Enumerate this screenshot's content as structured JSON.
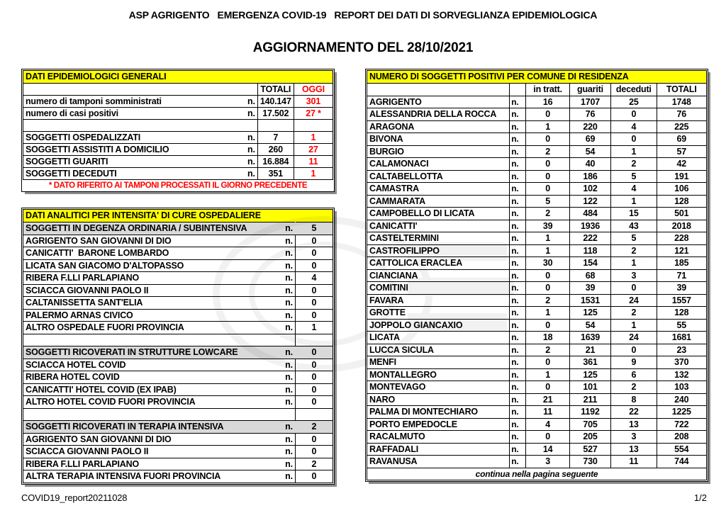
{
  "header": {
    "title": "ASP AGRIGENTO   EMERGENZA COVID-19   REPORT DEI DATI DI SORVEGLIANZA EPIDEMIOLOGICA",
    "subtitle": "AGGIORNAMENTO DEL 28/10/2021"
  },
  "colors": {
    "highlight_yellow": "#ffff00",
    "alert_red": "#ff0000",
    "section_gray": "#d9d9d9"
  },
  "general_table": {
    "title": "DATI EPIDEMIOLOGICI GENERALI",
    "columns": {
      "totali": "TOTALI",
      "oggi": "OGGI"
    },
    "rows": [
      {
        "label": "numero di tamponi somministrati",
        "unit": "n.",
        "totali": "140.147",
        "oggi": "301",
        "empty": false
      },
      {
        "label": "numero di casi positivi",
        "unit": "n.",
        "totali": "17.502",
        "oggi": "27 *",
        "empty": false
      },
      {
        "label": "",
        "unit": "",
        "totali": "",
        "oggi": "",
        "empty": true
      },
      {
        "label": "SOGGETTI OSPEDALIZZATI",
        "unit": "n.",
        "totali": "7",
        "oggi": "1",
        "empty": false
      },
      {
        "label": "SOGGETTI ASSISTITI A DOMICILIO",
        "unit": "n.",
        "totali": "260",
        "oggi": "27",
        "empty": false
      },
      {
        "label": "SOGGETTI GUARITI",
        "unit": "n.",
        "totali": "16.884",
        "oggi": "11",
        "empty": false
      },
      {
        "label": "SOGGETTI DECEDUTI",
        "unit": "n.",
        "totali": "351",
        "oggi": "1",
        "empty": false
      }
    ],
    "footnote": "* DATO RIFERITO AI TAMPONI PROCESSATI IL GIORNO PRECEDENTE"
  },
  "hospital_table": {
    "title": "DATI ANALITICI PER INTENSITA' DI CURE OSPEDALIERE",
    "unit": "n.",
    "rows": [
      {
        "type": "section",
        "label": "SOGGETTI IN DEGENZA ORDINARIA / SUBINTENSIVA",
        "value": "5"
      },
      {
        "type": "data",
        "label": "AGRIGENTO SAN GIOVANNI DI DIO",
        "value": "0"
      },
      {
        "type": "data",
        "label": "CANICATTI'  BARONE LOMBARDO",
        "value": "0"
      },
      {
        "type": "data",
        "label": "LICATA SAN GIACOMO D'ALTOPASSO",
        "value": "0"
      },
      {
        "type": "data",
        "label": "RIBERA F.LLI PARLAPIANO",
        "value": "4"
      },
      {
        "type": "data",
        "label": "SCIACCA GIOVANNI PAOLO II",
        "value": "0"
      },
      {
        "type": "data",
        "label": "CALTANISSETTA SANT'ELIA",
        "value": "0"
      },
      {
        "type": "data",
        "label": "PALERMO ARNAS CIVICO",
        "value": "0"
      },
      {
        "type": "data",
        "label": "ALTRO OSPEDALE FUORI PROVINCIA",
        "value": "1"
      },
      {
        "type": "empty",
        "label": "",
        "value": ""
      },
      {
        "type": "section",
        "label": "SOGGETTI RICOVERATI IN STRUTTURE LOWCARE",
        "value": "0"
      },
      {
        "type": "data",
        "label": "SCIACCA HOTEL COVID",
        "value": "0"
      },
      {
        "type": "data",
        "label": "RIBERA HOTEL COVID",
        "value": "0"
      },
      {
        "type": "data",
        "label": "CANICATTI' HOTEL COVID (EX IPAB)",
        "value": "0"
      },
      {
        "type": "data",
        "label": "ALTRO HOTEL COVID FUORI PROVINCIA",
        "value": "0"
      },
      {
        "type": "empty",
        "label": "",
        "value": ""
      },
      {
        "type": "section",
        "label": "SOGGETTI RICOVERATI IN TERAPIA INTENSIVA",
        "value": "2"
      },
      {
        "type": "data",
        "label": "AGRIGENTO SAN GIOVANNI DI DIO",
        "value": "0"
      },
      {
        "type": "data",
        "label": "SCIACCA GIOVANNI PAOLO II",
        "value": "0"
      },
      {
        "type": "data",
        "label": "RIBERA F.LLI PARLAPIANO",
        "value": "2"
      },
      {
        "type": "data",
        "label": "ALTRA TERAPIA INTENSIVA FUORI PROVINCIA",
        "value": "0"
      }
    ]
  },
  "comuni_table": {
    "title": "NUMERO DI SOGGETTI POSITIVI PER COMUNE DI RESIDENZA",
    "unit": "n.",
    "columns": [
      "in tratt.",
      "guariti",
      "deceduti",
      "TOTALI"
    ],
    "rows": [
      [
        "AGRIGENTO",
        16,
        1707,
        25,
        1748
      ],
      [
        "ALESSANDRIA DELLA ROCCA",
        0,
        76,
        0,
        76
      ],
      [
        "ARAGONA",
        1,
        220,
        4,
        225
      ],
      [
        "BIVONA",
        0,
        69,
        0,
        69
      ],
      [
        "BURGIO",
        2,
        54,
        1,
        57
      ],
      [
        "CALAMONACI",
        0,
        40,
        2,
        42
      ],
      [
        "CALTABELLOTTA",
        0,
        186,
        5,
        191
      ],
      [
        "CAMASTRA",
        0,
        102,
        4,
        106
      ],
      [
        "CAMMARATA",
        5,
        122,
        1,
        128
      ],
      [
        "CAMPOBELLO DI LICATA",
        2,
        484,
        15,
        501
      ],
      [
        "CANICATTI'",
        39,
        1936,
        43,
        2018
      ],
      [
        "CASTELTERMINI",
        1,
        222,
        5,
        228
      ],
      [
        "CASTROFILIPPO",
        1,
        118,
        2,
        121
      ],
      [
        "CATTOLICA ERACLEA",
        30,
        154,
        1,
        185
      ],
      [
        "CIANCIANA",
        0,
        68,
        3,
        71
      ],
      [
        "COMITINI",
        0,
        39,
        0,
        39
      ],
      [
        "FAVARA",
        2,
        1531,
        24,
        1557
      ],
      [
        "GROTTE",
        1,
        125,
        2,
        128
      ],
      [
        "JOPPOLO GIANCAXIO",
        0,
        54,
        1,
        55
      ],
      [
        "LICATA",
        18,
        1639,
        24,
        1681
      ],
      [
        "LUCCA SICULA",
        2,
        21,
        0,
        23
      ],
      [
        "MENFI",
        0,
        361,
        9,
        370
      ],
      [
        "MONTALLEGRO",
        1,
        125,
        6,
        132
      ],
      [
        "MONTEVAGO",
        0,
        101,
        2,
        103
      ],
      [
        "NARO",
        21,
        211,
        8,
        240
      ],
      [
        "PALMA DI MONTECHIARO",
        11,
        1192,
        22,
        1225
      ],
      [
        "PORTO EMPEDOCLE",
        4,
        705,
        13,
        722
      ],
      [
        "RACALMUTO",
        0,
        205,
        3,
        208
      ],
      [
        "RAFFADALI",
        14,
        527,
        13,
        554
      ],
      [
        "RAVANUSA",
        3,
        730,
        11,
        744
      ]
    ],
    "footer": "continua nella pagina seguente"
  },
  "page_footer": {
    "file_label": "COVID19_report20211028",
    "page_number": "1/2"
  }
}
